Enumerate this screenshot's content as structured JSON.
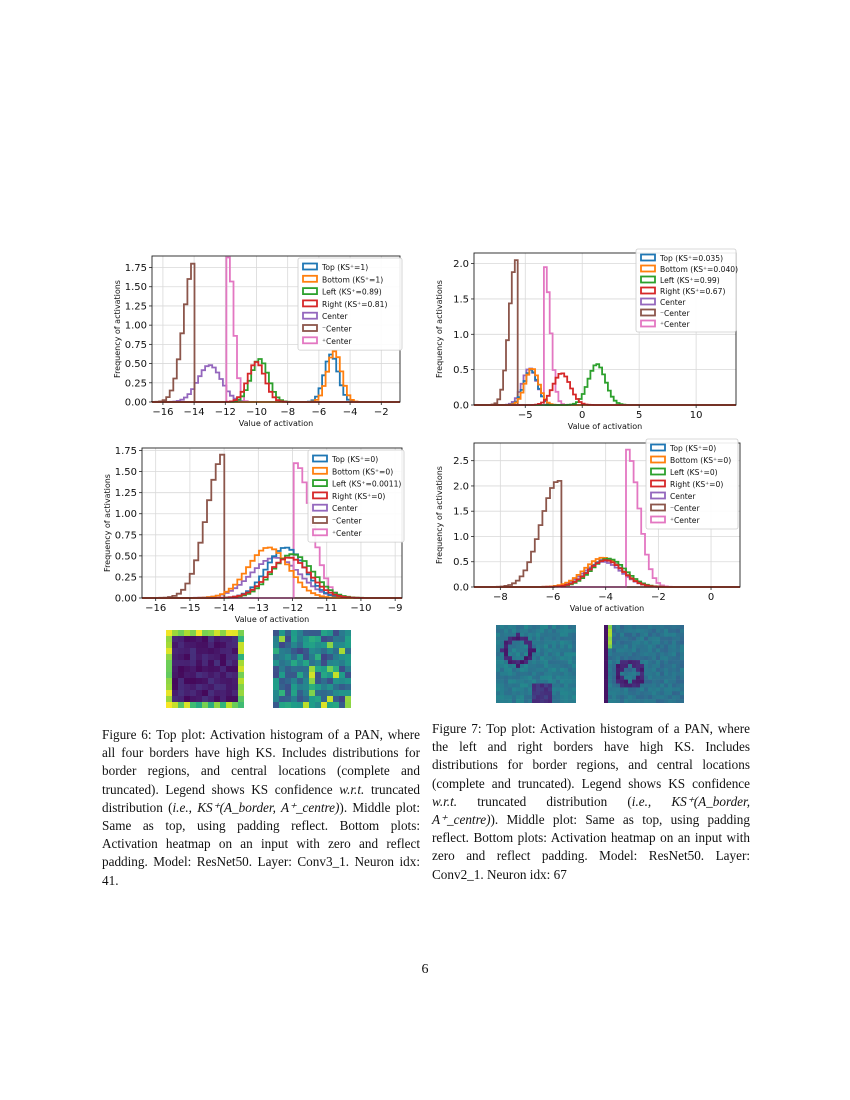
{
  "page_number": "6",
  "colors": {
    "top": "#1f77b4",
    "bottom": "#ff7f0e",
    "left": "#2ca02c",
    "right": "#d62728",
    "center": "#9467bd",
    "minus_center": "#8c564b",
    "plus_center": "#e377c2"
  },
  "chart_data": [
    {
      "type": "histogram",
      "panel": "figure6-top",
      "xlabel": "Value of activation",
      "ylabel": "Frequency of activations",
      "xlim": [
        -16.7,
        -0.8
      ],
      "ylim": [
        0,
        1.9
      ],
      "xticks": [
        -16,
        -14,
        -12,
        -10,
        -8,
        -6,
        -4,
        -2
      ],
      "yticks": [
        0.0,
        0.25,
        0.5,
        0.75,
        1.0,
        1.25,
        1.5,
        1.75
      ],
      "grid": true,
      "legend_position": "upper-right",
      "series": [
        {
          "name": "Top (KS⁺=1)",
          "key": "top",
          "shape": "gauss",
          "mu": -5.2,
          "sigma": 0.45,
          "peak": 0.62
        },
        {
          "name": "Bottom (KS⁺=1)",
          "key": "bottom",
          "shape": "gauss",
          "mu": -5.0,
          "sigma": 0.45,
          "peak": 0.66
        },
        {
          "name": "Left (KS⁺=0.89)",
          "key": "left",
          "shape": "gauss",
          "mu": -9.8,
          "sigma": 0.55,
          "peak": 0.56
        },
        {
          "name": "Right (KS⁺=0.81)",
          "key": "right",
          "shape": "gauss",
          "mu": -10.0,
          "sigma": 0.55,
          "peak": 0.52
        },
        {
          "name": "Center",
          "key": "center",
          "shape": "gauss",
          "mu": -13.0,
          "sigma": 0.75,
          "peak": 0.48
        },
        {
          "name": "⁻Center",
          "key": "minus_center",
          "shape": "trunc_left",
          "cut": -14.0,
          "sigma": 0.65,
          "peak": 1.8
        },
        {
          "name": "⁺Center",
          "key": "plus_center",
          "shape": "trunc_right",
          "cut": -11.8,
          "sigma": 0.35,
          "peak": 1.88
        }
      ]
    },
    {
      "type": "histogram",
      "panel": "figure6-middle",
      "xlabel": "Value of activation",
      "ylabel": "Frequency of activations",
      "xlim": [
        -16.4,
        -8.8
      ],
      "ylim": [
        0,
        1.78
      ],
      "xticks": [
        -16,
        -15,
        -14,
        -13,
        -12,
        -11,
        -10,
        -9
      ],
      "yticks": [
        0.0,
        0.25,
        0.5,
        0.75,
        1.0,
        1.25,
        1.5,
        1.75
      ],
      "grid": true,
      "legend_position": "upper-right",
      "series": [
        {
          "name": "Top (KS⁺=0)",
          "key": "top",
          "shape": "gauss",
          "mu": -12.2,
          "sigma": 0.55,
          "peak": 0.6
        },
        {
          "name": "Bottom (KS⁺=0)",
          "key": "bottom",
          "shape": "gauss",
          "mu": -12.7,
          "sigma": 0.6,
          "peak": 0.6
        },
        {
          "name": "Left (KS⁺=0.0011)",
          "key": "left",
          "shape": "gauss",
          "mu": -12.0,
          "sigma": 0.6,
          "peak": 0.52
        },
        {
          "name": "Right (KS⁺=0)",
          "key": "right",
          "shape": "gauss",
          "mu": -12.1,
          "sigma": 0.6,
          "peak": 0.48
        },
        {
          "name": "Center",
          "key": "center",
          "shape": "gauss",
          "mu": -12.5,
          "sigma": 0.7,
          "peak": 0.48
        },
        {
          "name": "⁻Center",
          "key": "minus_center",
          "shape": "trunc_left",
          "cut": -14.0,
          "sigma": 0.5,
          "peak": 1.7
        },
        {
          "name": "⁺Center",
          "key": "plus_center",
          "shape": "trunc_right",
          "cut": -11.9,
          "sigma": 0.45,
          "peak": 1.6
        }
      ]
    },
    {
      "type": "histogram",
      "panel": "figure7-top",
      "xlabel": "Value of activation",
      "ylabel": "Frequency of activations",
      "xlim": [
        -9.5,
        13.5
      ],
      "ylim": [
        0,
        2.15
      ],
      "xticks": [
        -5,
        0,
        5,
        10
      ],
      "yticks": [
        0.0,
        0.5,
        1.0,
        1.5,
        2.0
      ],
      "grid": true,
      "legend_position": "upper-right",
      "series": [
        {
          "name": "Top (KS⁺=0.035)",
          "key": "top",
          "shape": "gauss",
          "mu": -4.5,
          "sigma": 0.6,
          "peak": 0.5
        },
        {
          "name": "Bottom (KS⁺=0.040)",
          "key": "bottom",
          "shape": "gauss",
          "mu": -4.4,
          "sigma": 0.6,
          "peak": 0.52
        },
        {
          "name": "Left (KS⁺=0.99)",
          "key": "left",
          "shape": "gauss",
          "mu": 1.3,
          "sigma": 0.75,
          "peak": 0.58
        },
        {
          "name": "Right (KS⁺=0.67)",
          "key": "right",
          "shape": "gauss",
          "mu": -1.8,
          "sigma": 0.75,
          "peak": 0.45
        },
        {
          "name": "Center",
          "key": "center",
          "shape": "gauss",
          "mu": -4.6,
          "sigma": 0.65,
          "peak": 0.52
        },
        {
          "name": "⁻Center",
          "key": "minus_center",
          "shape": "trunc_left",
          "cut": -5.8,
          "sigma": 0.6,
          "peak": 2.05
        },
        {
          "name": "⁺Center",
          "key": "plus_center",
          "shape": "trunc_right",
          "cut": -3.3,
          "sigma": 0.5,
          "peak": 1.95
        }
      ]
    },
    {
      "type": "histogram",
      "panel": "figure7-middle",
      "xlabel": "Value of activation",
      "ylabel": "Frequency of activations",
      "xlim": [
        -9.0,
        1.1
      ],
      "ylim": [
        0,
        2.85
      ],
      "xticks": [
        -8,
        -6,
        -4,
        -2,
        0
      ],
      "yticks": [
        0.0,
        0.5,
        1.0,
        1.5,
        2.0,
        2.5
      ],
      "grid": true,
      "legend_position": "upper-right",
      "series": [
        {
          "name": "Top (KS⁺=0)",
          "key": "top",
          "shape": "gauss",
          "mu": -4.0,
          "sigma": 0.65,
          "peak": 0.55
        },
        {
          "name": "Bottom (KS⁺=0)",
          "key": "bottom",
          "shape": "gauss",
          "mu": -4.1,
          "sigma": 0.7,
          "peak": 0.58
        },
        {
          "name": "Left (KS⁺=0)",
          "key": "left",
          "shape": "gauss",
          "mu": -3.9,
          "sigma": 0.65,
          "peak": 0.56
        },
        {
          "name": "Right (KS⁺=0)",
          "key": "right",
          "shape": "gauss",
          "mu": -4.0,
          "sigma": 0.65,
          "peak": 0.53
        },
        {
          "name": "Center",
          "key": "center",
          "shape": "gauss",
          "mu": -4.1,
          "sigma": 0.7,
          "peak": 0.5
        },
        {
          "name": "⁻Center",
          "key": "minus_center",
          "shape": "trunc_left",
          "cut": -5.8,
          "sigma": 0.65,
          "peak": 2.1
        },
        {
          "name": "⁺Center",
          "key": "plus_center",
          "shape": "trunc_right",
          "cut": -3.2,
          "sigma": 0.45,
          "peak": 2.72
        }
      ]
    }
  ],
  "heatmaps": [
    {
      "panel": "figure6-zero-padding",
      "pattern": "border-bright"
    },
    {
      "panel": "figure6-reflect-padding",
      "pattern": "noisy-bright"
    },
    {
      "panel": "figure7-zero-padding",
      "pattern": "ring"
    },
    {
      "panel": "figure7-reflect-padding",
      "pattern": "ring-left-edge"
    }
  ],
  "captions": {
    "figure6": {
      "p1": "Figure 6: Top plot: Activation histogram of a PAN, where all four borders have high KS. Includes distributions for border regions, and central locations (complete and truncated). Legend shows KS confidence ",
      "wrt": "w.r.t.",
      "p2": " truncated distribution (",
      "ie": "i.e.,",
      "formula": " KS⁺(A_border, A⁺_centre)",
      "p3": "). Middle plot: Same as top, using padding reflect. Bottom plots: Activation heatmap on an input with zero and reflect padding. Model: ResNet50. Layer: Conv3_1. Neuron idx: 41."
    },
    "figure7": {
      "p1": "Figure 7: Top plot: Activation histogram of a PAN, where the left and right borders have high KS. Includes distributions for border regions, and central locations (complete and truncated). Legend shows KS confidence ",
      "wrt": "w.r.t.",
      "p2": " truncated distribution (",
      "ie": "i.e.,",
      "formula": " KS⁺(A_border, A⁺_centre)",
      "p3": "). Middle plot: Same as top, using padding reflect. Bottom plots: Activation heatmap on an input with zero and reflect padding. Model: ResNet50. Layer: Conv2_1. Neuron idx: 67"
    }
  }
}
